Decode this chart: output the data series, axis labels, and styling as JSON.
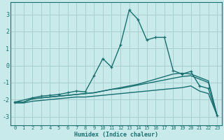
{
  "background_color": "#c8eaea",
  "grid_color": "#a8d0d0",
  "line_color": "#1a7070",
  "xlabel": "Humidex (Indice chaleur)",
  "xlim": [
    -0.5,
    23.5
  ],
  "ylim": [
    -3.5,
    3.7
  ],
  "xticks": [
    0,
    1,
    2,
    3,
    4,
    5,
    6,
    7,
    8,
    9,
    10,
    11,
    12,
    13,
    14,
    15,
    16,
    17,
    18,
    19,
    20,
    21,
    22,
    23
  ],
  "yticks": [
    -3,
    -2,
    -1,
    0,
    1,
    2,
    3
  ],
  "series": [
    {
      "x": [
        0,
        1,
        2,
        3,
        4,
        5,
        6,
        7,
        8,
        9,
        10,
        11,
        12,
        13,
        14,
        15,
        16,
        17,
        18,
        19,
        20,
        21,
        22,
        23
      ],
      "y": [
        -2.15,
        -2.15,
        -1.95,
        -1.9,
        -1.85,
        -1.8,
        -1.75,
        -1.7,
        -1.65,
        -1.6,
        -1.5,
        -1.4,
        -1.3,
        -1.2,
        -1.1,
        -0.95,
        -0.8,
        -0.65,
        -0.5,
        -0.45,
        -0.5,
        -0.7,
        -0.9,
        -2.95
      ],
      "marker": false,
      "lw": 1.0
    },
    {
      "x": [
        0,
        1,
        2,
        3,
        4,
        5,
        6,
        7,
        8,
        9,
        10,
        11,
        12,
        13,
        14,
        15,
        16,
        17,
        18,
        19,
        20,
        21,
        22,
        23
      ],
      "y": [
        -2.15,
        -2.15,
        -1.95,
        -1.9,
        -1.85,
        -1.8,
        -1.75,
        -1.7,
        -1.65,
        -1.6,
        -1.5,
        -1.4,
        -1.35,
        -1.25,
        -1.15,
        -1.05,
        -0.95,
        -0.85,
        -0.75,
        -0.65,
        -0.6,
        -0.8,
        -1.0,
        -2.95
      ],
      "marker": false,
      "lw": 1.0
    },
    {
      "x": [
        0,
        1,
        2,
        3,
        4,
        5,
        6,
        7,
        8,
        9,
        10,
        11,
        12,
        13,
        14,
        15,
        16,
        17,
        18,
        19,
        20,
        21,
        22,
        23
      ],
      "y": [
        -2.2,
        -2.2,
        -2.1,
        -2.05,
        -2.0,
        -1.95,
        -1.9,
        -1.85,
        -1.85,
        -1.8,
        -1.75,
        -1.7,
        -1.65,
        -1.6,
        -1.55,
        -1.5,
        -1.45,
        -1.4,
        -1.35,
        -1.3,
        -1.2,
        -1.5,
        -1.65,
        -2.95
      ],
      "marker": false,
      "lw": 1.0
    },
    {
      "x": [
        0,
        2,
        3,
        4,
        5,
        6,
        7,
        8,
        9,
        10,
        11,
        12,
        13,
        14,
        15,
        16,
        17,
        18,
        19,
        20,
        21,
        22,
        23
      ],
      "y": [
        -2.15,
        -1.9,
        -1.8,
        -1.75,
        -1.7,
        -1.6,
        -1.5,
        -1.55,
        -0.6,
        0.4,
        -0.1,
        1.2,
        3.25,
        2.7,
        1.5,
        1.65,
        1.65,
        -0.3,
        -0.5,
        -0.35,
        -1.2,
        -1.35,
        -2.95
      ],
      "marker": true,
      "lw": 1.0
    }
  ]
}
